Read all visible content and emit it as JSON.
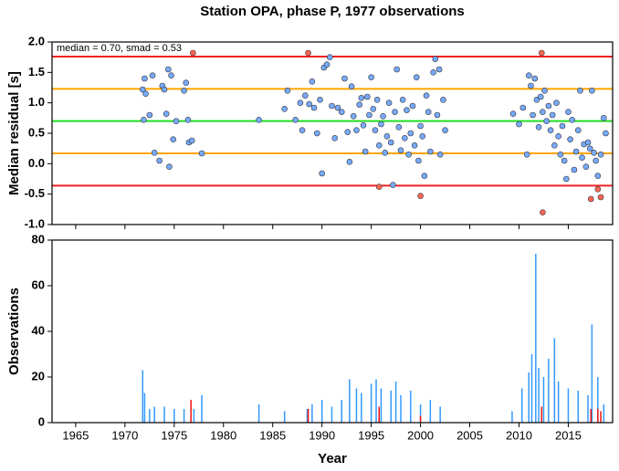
{
  "chart_data": [
    {
      "type": "scatter",
      "title": "Station OPA, phase P, 1977 observations",
      "ylabel": "Median residual [s]",
      "annotation": "median = 0.70, smad = 0.53",
      "xlim": [
        1962.6,
        2019.5
      ],
      "xticks": [
        1965,
        1970,
        1975,
        1980,
        1985,
        1990,
        1995,
        2000,
        2005,
        2010,
        2015
      ],
      "ylim": [
        -1.0,
        2.0
      ],
      "yticks": [
        {
          "value": -1.0,
          "label": "-1.0"
        },
        -0.5,
        {
          "value": 0.0,
          "label": "0.0"
        },
        0.5,
        {
          "value": 1.0,
          "label": "1.0"
        },
        1.5,
        {
          "value": 2.0,
          "label": "2.0"
        }
      ],
      "hlines": [
        {
          "value": 1.76,
          "color": "#ee2222"
        },
        {
          "value": 1.23,
          "color": "#ffa500"
        },
        {
          "value": 0.7,
          "color": "#22dd22"
        },
        {
          "value": 0.17,
          "color": "#ffa500"
        },
        {
          "value": -0.36,
          "color": "#ee2222"
        }
      ],
      "series": [
        {
          "color": "#77aaff",
          "x": [
            1971.8,
            1971.9,
            1972.0,
            1972.1,
            1972.5,
            1972.8,
            1973.0,
            1973.5,
            1973.8,
            1974.0,
            1974.2,
            1974.4,
            1974.5,
            1974.7,
            1974.9,
            1975.2,
            1976.0,
            1976.2,
            1976.4,
            1976.5,
            1976.8,
            1977.8,
            1983.6,
            1986.2,
            1986.5,
            1987.3,
            1987.8,
            1988.0,
            1988.3,
            1988.7,
            1989.0,
            1989.2,
            1989.5,
            1989.8,
            1990.0,
            1990.2,
            1990.5,
            1990.8,
            1991.0,
            1991.3,
            1991.6,
            1992.0,
            1992.3,
            1992.6,
            1992.8,
            1993.0,
            1993.2,
            1993.5,
            1993.8,
            1994.0,
            1994.2,
            1994.4,
            1994.6,
            1994.8,
            1995.0,
            1995.2,
            1995.4,
            1995.6,
            1995.8,
            1996.0,
            1996.2,
            1996.4,
            1996.6,
            1996.8,
            1997.0,
            1997.2,
            1997.4,
            1997.6,
            1997.8,
            1998.0,
            1998.2,
            1998.4,
            1998.6,
            1998.8,
            1999.0,
            1999.2,
            1999.4,
            1999.6,
            1999.8,
            2000.0,
            2000.2,
            2000.4,
            2000.6,
            2000.8,
            2001.0,
            2001.3,
            2001.5,
            2001.7,
            2001.9,
            2002.0,
            2002.3,
            2002.5,
            2009.4,
            2010.0,
            2010.4,
            2010.8,
            2011.0,
            2011.2,
            2011.4,
            2011.6,
            2011.8,
            2012.0,
            2012.2,
            2012.4,
            2012.6,
            2012.8,
            2013.0,
            2013.2,
            2013.4,
            2013.6,
            2013.8,
            2014.0,
            2014.2,
            2014.4,
            2014.6,
            2014.8,
            2015.0,
            2015.2,
            2015.4,
            2015.6,
            2015.8,
            2016.0,
            2016.2,
            2016.4,
            2016.6,
            2016.8,
            2017.0,
            2017.2,
            2017.4,
            2017.6,
            2017.8,
            2018.0,
            2018.3,
            2018.6,
            2018.8
          ],
          "values": [
            1.22,
            0.72,
            1.4,
            1.15,
            0.8,
            1.45,
            0.18,
            0.05,
            1.28,
            1.22,
            0.82,
            1.55,
            -0.05,
            1.45,
            0.4,
            0.7,
            1.2,
            1.33,
            0.72,
            0.35,
            0.38,
            0.17,
            0.72,
            0.9,
            1.2,
            0.72,
            1.0,
            0.55,
            1.12,
            0.98,
            1.35,
            0.92,
            0.5,
            1.05,
            -0.16,
            1.58,
            1.63,
            1.75,
            0.95,
            0.42,
            0.92,
            0.85,
            1.4,
            0.52,
            0.03,
            1.27,
            0.78,
            0.55,
            0.97,
            1.08,
            0.63,
            0.2,
            1.1,
            0.8,
            1.42,
            0.9,
            0.55,
            1.05,
            0.3,
            0.65,
            0.78,
            0.18,
            0.45,
            1.0,
            0.35,
            -0.35,
            0.85,
            1.55,
            0.6,
            0.22,
            1.05,
            0.42,
            0.88,
            0.15,
            0.5,
            0.95,
            0.3,
            1.42,
            0.05,
            0.62,
            0.45,
            -0.2,
            1.12,
            0.85,
            0.2,
            1.5,
            1.72,
            0.8,
            1.55,
            0.15,
            1.05,
            0.55,
            0.82,
            0.65,
            0.92,
            0.15,
            1.45,
            1.28,
            0.8,
            1.4,
            1.05,
            0.6,
            1.1,
            0.85,
            1.2,
            0.7,
            0.95,
            0.55,
            0.8,
            0.3,
            1.0,
            0.45,
            0.15,
            0.62,
            0.05,
            -0.25,
            0.85,
            0.4,
            0.72,
            -0.1,
            0.2,
            0.55,
            1.2,
            0.1,
            0.32,
            -0.05,
            0.35,
            0.25,
            1.2,
            0.18,
            0.05,
            -0.2,
            0.15,
            0.75,
            0.5
          ]
        },
        {
          "color": "#ff6655",
          "x": [
            1976.9,
            1988.6,
            1995.8,
            2000.0,
            2012.3,
            2012.4,
            2017.3,
            2018.0,
            2018.3
          ],
          "values": [
            1.82,
            1.82,
            -0.38,
            -0.53,
            1.82,
            -0.8,
            -0.58,
            -0.42,
            -0.55
          ]
        }
      ]
    },
    {
      "type": "bar",
      "xlabel": "Year",
      "ylabel": "Observations",
      "xlim": [
        1962.6,
        2019.5
      ],
      "xticks": [
        1965,
        1970,
        1975,
        1980,
        1985,
        1990,
        1995,
        2000,
        2005,
        2010,
        2015
      ],
      "ylim": [
        0,
        80
      ],
      "yticks": [
        0,
        20,
        40,
        60,
        80
      ],
      "series": [
        {
          "color": "#3399ff",
          "x": [
            1971.8,
            1972.0,
            1972.5,
            1973.0,
            1974.0,
            1975.0,
            1976.0,
            1977.0,
            1977.8,
            1983.6,
            1986.2,
            1988.5,
            1989.0,
            1990.0,
            1991.0,
            1992.0,
            1992.8,
            1993.5,
            1994.0,
            1995.0,
            1995.5,
            1996.0,
            1997.0,
            1997.5,
            1998.0,
            1999.0,
            2000.0,
            2001.0,
            2002.0,
            2009.3,
            2010.3,
            2011.0,
            2011.3,
            2011.7,
            2012.0,
            2012.5,
            2013.0,
            2013.6,
            2014.0,
            2015.0,
            2016.0,
            2017.0,
            2017.4,
            2018.0,
            2018.6
          ],
          "values": [
            23,
            13,
            6,
            7,
            7,
            6,
            6,
            6,
            12,
            8,
            5,
            6,
            8,
            10,
            7,
            10,
            19,
            15,
            13,
            17,
            19,
            15,
            14,
            18,
            12,
            14,
            8,
            10,
            7,
            5,
            15,
            22,
            30,
            74,
            24,
            20,
            28,
            37,
            18,
            15,
            14,
            12,
            43,
            20,
            8
          ]
        },
        {
          "color": "#ee1111",
          "x": [
            1976.7,
            1988.6,
            1995.8,
            2000.0,
            2012.3,
            2017.3,
            2018.0,
            2018.3
          ],
          "values": [
            10,
            6,
            7,
            3,
            7,
            6,
            6,
            5
          ]
        }
      ]
    }
  ]
}
